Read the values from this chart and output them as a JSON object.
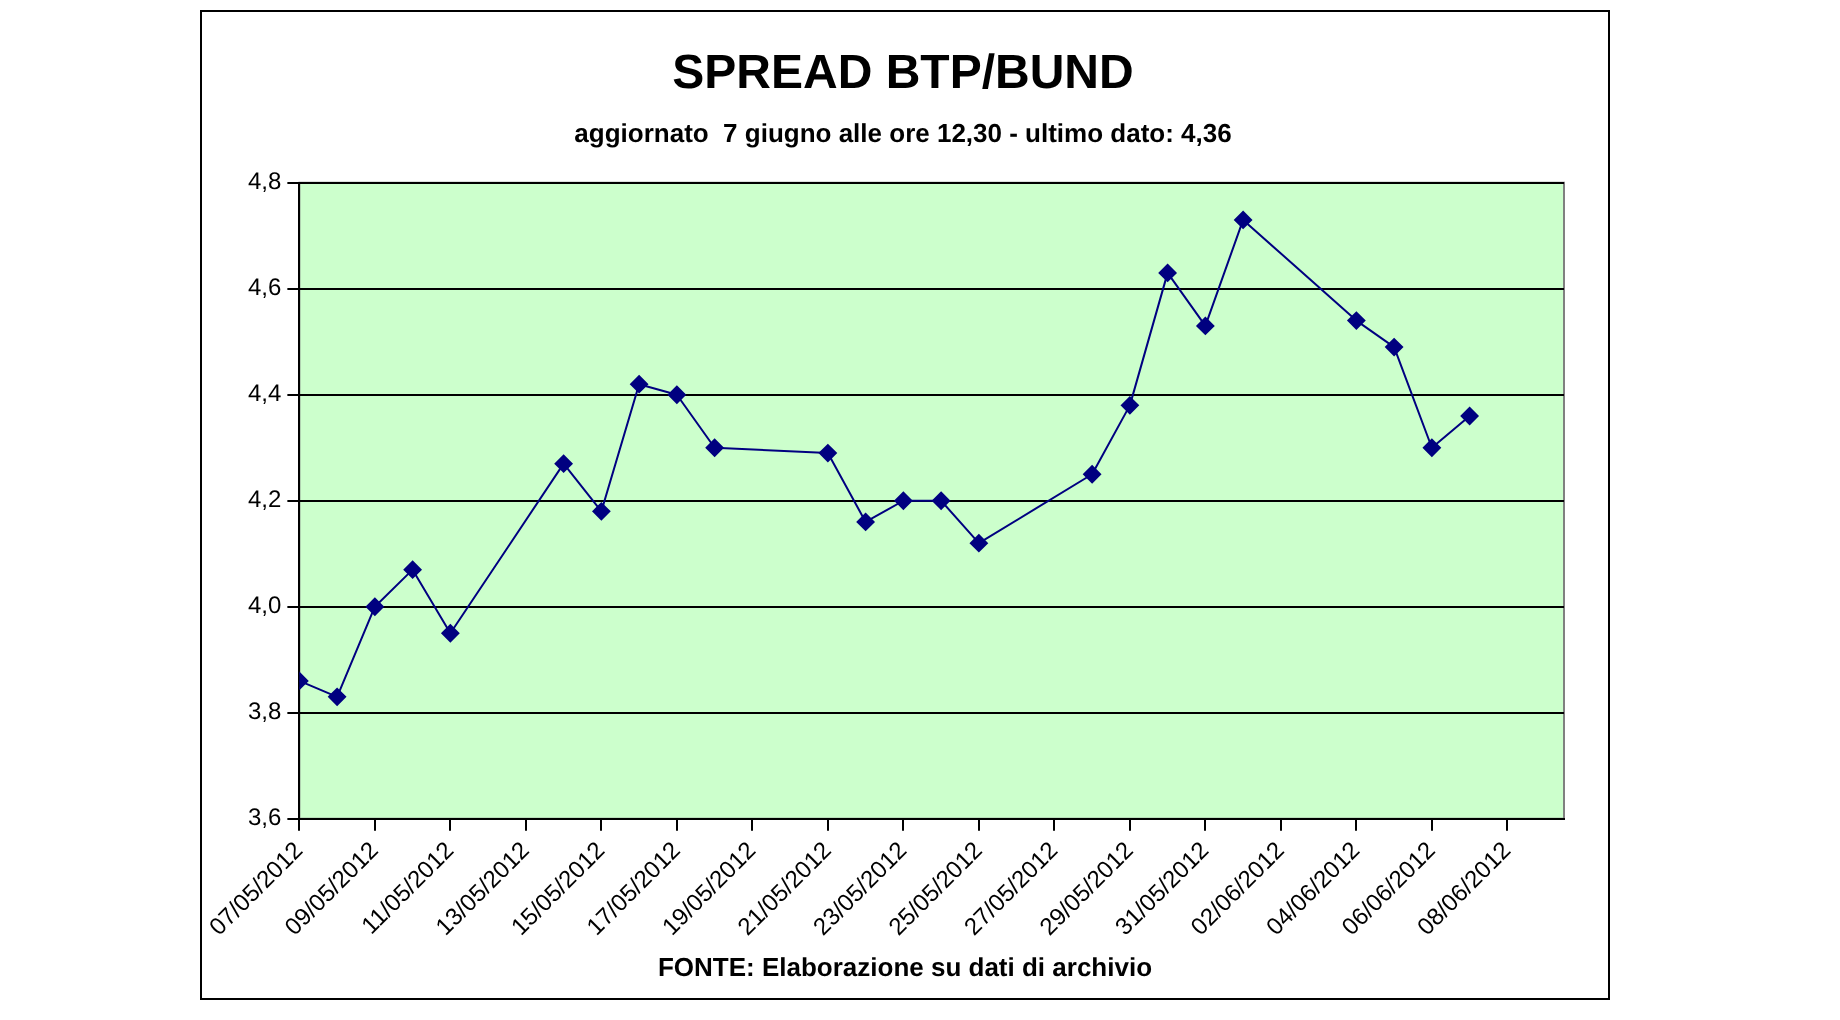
{
  "chart_data": {
    "type": "line",
    "title": "SPREAD BTP/BUND",
    "subtitle": "aggiornato  7 giugno alle ore 12,30 - ultimo dato: 4,36",
    "annotations": [
      "FONTE: Elaborazione su dati di archivio"
    ],
    "x": [
      "2012-05-07",
      "2012-05-08",
      "2012-05-09",
      "2012-05-10",
      "2012-05-11",
      "2012-05-14",
      "2012-05-15",
      "2012-05-16",
      "2012-05-17",
      "2012-05-18",
      "2012-05-21",
      "2012-05-22",
      "2012-05-23",
      "2012-05-24",
      "2012-05-25",
      "2012-05-28",
      "2012-05-29",
      "2012-05-30",
      "2012-05-31",
      "2012-06-01",
      "2012-06-04",
      "2012-06-05",
      "2012-06-06",
      "2012-06-07"
    ],
    "series": [
      {
        "color": "#000080",
        "values": [
          3.86,
          3.83,
          4.0,
          4.07,
          3.95,
          4.27,
          4.18,
          4.42,
          4.4,
          4.3,
          4.29,
          4.16,
          4.2,
          4.2,
          4.12,
          4.25,
          4.38,
          4.63,
          4.53,
          4.73,
          4.54,
          4.49,
          4.3,
          4.36
        ]
      }
    ],
    "ylim": [
      3.6,
      4.8
    ],
    "yticks": [
      {
        "value": 3.6,
        "label": "3,6"
      },
      {
        "value": 3.8,
        "label": "3,8"
      },
      {
        "value": 4.0,
        "label": "4,0"
      },
      {
        "value": 4.2,
        "label": "4,2"
      },
      {
        "value": 4.4,
        "label": "4,4"
      },
      {
        "value": 4.6,
        "label": "4,6"
      },
      {
        "value": 4.8,
        "label": "4,8"
      }
    ],
    "xlim": [
      "2012-05-07",
      "2012-06-09T12:00"
    ],
    "xticks": [
      {
        "value": "2012-05-07",
        "label": "07/05/2012"
      },
      {
        "value": "2012-05-09",
        "label": "09/05/2012"
      },
      {
        "value": "2012-05-11",
        "label": "11/05/2012"
      },
      {
        "value": "2012-05-13",
        "label": "13/05/2012"
      },
      {
        "value": "2012-05-15",
        "label": "15/05/2012"
      },
      {
        "value": "2012-05-17",
        "label": "17/05/2012"
      },
      {
        "value": "2012-05-19",
        "label": "19/05/2012"
      },
      {
        "value": "2012-05-21",
        "label": "21/05/2012"
      },
      {
        "value": "2012-05-23",
        "label": "23/05/2012"
      },
      {
        "value": "2012-05-25",
        "label": "25/05/2012"
      },
      {
        "value": "2012-05-27",
        "label": "27/05/2012"
      },
      {
        "value": "2012-05-29",
        "label": "29/05/2012"
      },
      {
        "value": "2012-05-31",
        "label": "31/05/2012"
      },
      {
        "value": "2012-06-02",
        "label": "02/06/2012"
      },
      {
        "value": "2012-06-04",
        "label": "04/06/2012"
      },
      {
        "value": "2012-06-06",
        "label": "06/06/2012"
      },
      {
        "value": "2012-06-08",
        "label": "08/06/2012"
      }
    ],
    "grid": "y",
    "legend": false,
    "marker": "diamond",
    "line_style": "solid"
  }
}
